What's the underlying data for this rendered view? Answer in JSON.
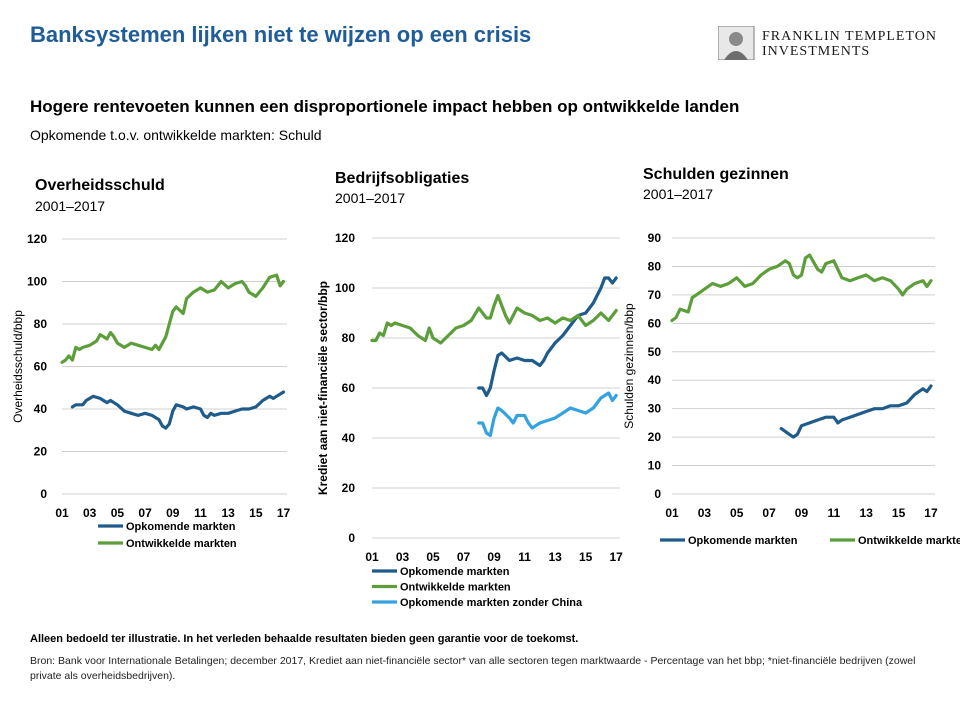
{
  "header": {
    "title": "Banksystemen lijken niet te wijzen op een crisis",
    "logo_line1": "FRANKLIN TEMPLETON",
    "logo_line2": "INVESTMENTS",
    "headline": "Hogere rentevoeten kunnen een disproportionele impact hebben op ontwikkelde landen",
    "subheadline": "Opkomende t.o.v. ontwikkelde markten: Schuld"
  },
  "colors": {
    "title": "#1f5c9a",
    "emerging": "#1f5c8c",
    "developed": "#5b9e3a",
    "emerging_ex_china": "#35a2e0",
    "grid": "#d0d0d0"
  },
  "chart_data": [
    {
      "type": "line",
      "title": "Overheidsschuld",
      "subtitle": "2001–2017",
      "ylabel": "Overheidsschuld/bbp",
      "xlabel": "",
      "ylim": [
        0,
        120
      ],
      "yticks": [
        0,
        20,
        40,
        60,
        80,
        100,
        120
      ],
      "xticks": [
        "01",
        "03",
        "05",
        "07",
        "09",
        "11",
        "13",
        "15",
        "17"
      ],
      "grid": true,
      "legend": "bottom",
      "series": [
        {
          "name": "Opkomende markten",
          "color": "#1f5c8c",
          "points": [
            [
              2001.75,
              41
            ],
            [
              2002,
              42
            ],
            [
              2002.5,
              42
            ],
            [
              2002.75,
              44
            ],
            [
              2003.25,
              46
            ],
            [
              2003.75,
              45
            ],
            [
              2004.25,
              43
            ],
            [
              2004.5,
              44
            ],
            [
              2005,
              42
            ],
            [
              2005.5,
              39
            ],
            [
              2006,
              38
            ],
            [
              2006.5,
              37
            ],
            [
              2007,
              38
            ],
            [
              2007.5,
              37
            ],
            [
              2008,
              35
            ],
            [
              2008.25,
              32
            ],
            [
              2008.5,
              31
            ],
            [
              2008.75,
              33
            ],
            [
              2009,
              39
            ],
            [
              2009.25,
              42
            ],
            [
              2009.75,
              41
            ],
            [
              2010,
              40
            ],
            [
              2010.5,
              41
            ],
            [
              2011,
              40
            ],
            [
              2011.25,
              37
            ],
            [
              2011.5,
              36
            ],
            [
              2011.75,
              38
            ],
            [
              2012,
              37
            ],
            [
              2012.5,
              38
            ],
            [
              2013,
              38
            ],
            [
              2013.5,
              39
            ],
            [
              2014,
              40
            ],
            [
              2014.5,
              40
            ],
            [
              2015,
              41
            ],
            [
              2015.5,
              44
            ],
            [
              2016,
              46
            ],
            [
              2016.25,
              45
            ],
            [
              2016.5,
              46
            ],
            [
              2017,
              48
            ]
          ]
        },
        {
          "name": "Ontwikkelde markten",
          "color": "#5b9e3a",
          "points": [
            [
              2001,
              62
            ],
            [
              2001.25,
              63
            ],
            [
              2001.5,
              65
            ],
            [
              2001.75,
              63
            ],
            [
              2002,
              69
            ],
            [
              2002.25,
              68
            ],
            [
              2002.5,
              69
            ],
            [
              2003,
              70
            ],
            [
              2003.5,
              72
            ],
            [
              2003.75,
              75
            ],
            [
              2004.25,
              73
            ],
            [
              2004.5,
              76
            ],
            [
              2004.75,
              74
            ],
            [
              2005,
              71
            ],
            [
              2005.5,
              69
            ],
            [
              2006,
              71
            ],
            [
              2006.5,
              70
            ],
            [
              2007,
              69
            ],
            [
              2007.5,
              68
            ],
            [
              2007.75,
              70
            ],
            [
              2008,
              68
            ],
            [
              2008.5,
              74
            ],
            [
              2008.75,
              80
            ],
            [
              2009,
              86
            ],
            [
              2009.25,
              88
            ],
            [
              2009.75,
              85
            ],
            [
              2010,
              92
            ],
            [
              2010.5,
              95
            ],
            [
              2011,
              97
            ],
            [
              2011.5,
              95
            ],
            [
              2012,
              96
            ],
            [
              2012.5,
              100
            ],
            [
              2013,
              97
            ],
            [
              2013.5,
              99
            ],
            [
              2014,
              100
            ],
            [
              2014.25,
              98
            ],
            [
              2014.5,
              95
            ],
            [
              2015,
              93
            ],
            [
              2015.5,
              97
            ],
            [
              2016,
              102
            ],
            [
              2016.5,
              103
            ],
            [
              2016.75,
              98
            ],
            [
              2017,
              100
            ]
          ]
        }
      ]
    },
    {
      "type": "line",
      "title": "Bedrijfsobligaties",
      "subtitle": "2001–2017",
      "ylabel": "Krediet aan niet-financiële sector/bbp",
      "xlabel": "",
      "ylim": [
        0,
        120
      ],
      "yticks": [
        0,
        20,
        40,
        60,
        80,
        100,
        120
      ],
      "xticks": [
        "01",
        "03",
        "05",
        "07",
        "09",
        "11",
        "13",
        "15",
        "17"
      ],
      "grid": true,
      "legend": "bottom",
      "series": [
        {
          "name": "Opkomende markten",
          "color": "#1f5c8c",
          "points": [
            [
              2008,
              60
            ],
            [
              2008.25,
              60
            ],
            [
              2008.5,
              57
            ],
            [
              2008.75,
              60
            ],
            [
              2009,
              67
            ],
            [
              2009.25,
              73
            ],
            [
              2009.5,
              74
            ],
            [
              2010,
              71
            ],
            [
              2010.5,
              72
            ],
            [
              2011,
              71
            ],
            [
              2011.5,
              71
            ],
            [
              2012,
              69
            ],
            [
              2012.25,
              71
            ],
            [
              2012.5,
              74
            ],
            [
              2013,
              78
            ],
            [
              2013.5,
              81
            ],
            [
              2014,
              85
            ],
            [
              2014.5,
              89
            ],
            [
              2015,
              90
            ],
            [
              2015.5,
              94
            ],
            [
              2016,
              100
            ],
            [
              2016.25,
              104
            ],
            [
              2016.5,
              104
            ],
            [
              2016.75,
              102
            ],
            [
              2017,
              104
            ]
          ]
        },
        {
          "name": "Ontwikkelde markten",
          "color": "#5b9e3a",
          "points": [
            [
              2001,
              79
            ],
            [
              2001.25,
              79
            ],
            [
              2001.5,
              82
            ],
            [
              2001.75,
              81
            ],
            [
              2002,
              86
            ],
            [
              2002.25,
              85
            ],
            [
              2002.5,
              86
            ],
            [
              2003,
              85
            ],
            [
              2003.5,
              84
            ],
            [
              2004,
              81
            ],
            [
              2004.5,
              79
            ],
            [
              2004.75,
              84
            ],
            [
              2005,
              80
            ],
            [
              2005.5,
              78
            ],
            [
              2006,
              81
            ],
            [
              2006.5,
              84
            ],
            [
              2007,
              85
            ],
            [
              2007.5,
              87
            ],
            [
              2008,
              92
            ],
            [
              2008.25,
              90
            ],
            [
              2008.5,
              88
            ],
            [
              2008.75,
              88
            ],
            [
              2009,
              93
            ],
            [
              2009.25,
              97
            ],
            [
              2009.5,
              93
            ],
            [
              2009.75,
              89
            ],
            [
              2010,
              86
            ],
            [
              2010.5,
              92
            ],
            [
              2011,
              90
            ],
            [
              2011.5,
              89
            ],
            [
              2012,
              87
            ],
            [
              2012.5,
              88
            ],
            [
              2013,
              86
            ],
            [
              2013.5,
              88
            ],
            [
              2014,
              87
            ],
            [
              2014.5,
              89
            ],
            [
              2015,
              85
            ],
            [
              2015.5,
              87
            ],
            [
              2016,
              90
            ],
            [
              2016.5,
              87
            ],
            [
              2017,
              91
            ]
          ]
        },
        {
          "name": "Opkomende markten zonder China",
          "color": "#35a2e0",
          "points": [
            [
              2008,
              46
            ],
            [
              2008.25,
              46
            ],
            [
              2008.5,
              42
            ],
            [
              2008.75,
              41
            ],
            [
              2009,
              48
            ],
            [
              2009.25,
              52
            ],
            [
              2009.5,
              51
            ],
            [
              2010,
              48
            ],
            [
              2010.25,
              46
            ],
            [
              2010.5,
              49
            ],
            [
              2011,
              49
            ],
            [
              2011.25,
              46
            ],
            [
              2011.5,
              44
            ],
            [
              2012,
              46
            ],
            [
              2012.5,
              47
            ],
            [
              2013,
              48
            ],
            [
              2013.5,
              50
            ],
            [
              2014,
              52
            ],
            [
              2014.5,
              51
            ],
            [
              2015,
              50
            ],
            [
              2015.5,
              52
            ],
            [
              2016,
              56
            ],
            [
              2016.5,
              58
            ],
            [
              2016.75,
              55
            ],
            [
              2017,
              57
            ]
          ]
        }
      ]
    },
    {
      "type": "line",
      "title": "Schulden gezinnen",
      "subtitle": "2001–2017",
      "ylabel": "Schulden gezinnen/bbp",
      "xlabel": "",
      "ylim": [
        0,
        90
      ],
      "yticks": [
        0,
        10,
        20,
        30,
        40,
        50,
        60,
        70,
        80,
        90
      ],
      "xticks": [
        "01",
        "03",
        "05",
        "07",
        "09",
        "11",
        "13",
        "15",
        "17"
      ],
      "grid": true,
      "legend": "bottom",
      "series": [
        {
          "name": "Opkomende markten",
          "color": "#1f5c8c",
          "points": [
            [
              2007.75,
              23
            ],
            [
              2008,
              22
            ],
            [
              2008.25,
              21
            ],
            [
              2008.5,
              20
            ],
            [
              2008.75,
              21
            ],
            [
              2009,
              24
            ],
            [
              2009.5,
              25
            ],
            [
              2010,
              26
            ],
            [
              2010.5,
              27
            ],
            [
              2011,
              27
            ],
            [
              2011.25,
              25
            ],
            [
              2011.5,
              26
            ],
            [
              2012,
              27
            ],
            [
              2012.5,
              28
            ],
            [
              2013,
              29
            ],
            [
              2013.5,
              30
            ],
            [
              2014,
              30
            ],
            [
              2014.5,
              31
            ],
            [
              2015,
              31
            ],
            [
              2015.5,
              32
            ],
            [
              2016,
              35
            ],
            [
              2016.5,
              37
            ],
            [
              2016.75,
              36
            ],
            [
              2017,
              38
            ]
          ]
        },
        {
          "name": "Ontwikkelde markten",
          "color": "#5b9e3a",
          "points": [
            [
              2001,
              61
            ],
            [
              2001.25,
              62
            ],
            [
              2001.5,
              65
            ],
            [
              2002,
              64
            ],
            [
              2002.25,
              69
            ],
            [
              2002.5,
              70
            ],
            [
              2003,
              72
            ],
            [
              2003.5,
              74
            ],
            [
              2004,
              73
            ],
            [
              2004.5,
              74
            ],
            [
              2005,
              76
            ],
            [
              2005.5,
              73
            ],
            [
              2006,
              74
            ],
            [
              2006.5,
              77
            ],
            [
              2007,
              79
            ],
            [
              2007.5,
              80
            ],
            [
              2008,
              82
            ],
            [
              2008.25,
              81
            ],
            [
              2008.5,
              77
            ],
            [
              2008.75,
              76
            ],
            [
              2009,
              77
            ],
            [
              2009.25,
              83
            ],
            [
              2009.5,
              84
            ],
            [
              2010,
              79
            ],
            [
              2010.25,
              78
            ],
            [
              2010.5,
              81
            ],
            [
              2011,
              82
            ],
            [
              2011.5,
              76
            ],
            [
              2012,
              75
            ],
            [
              2012.5,
              76
            ],
            [
              2013,
              77
            ],
            [
              2013.5,
              75
            ],
            [
              2014,
              76
            ],
            [
              2014.5,
              75
            ],
            [
              2015,
              72
            ],
            [
              2015.25,
              70
            ],
            [
              2015.5,
              72
            ],
            [
              2016,
              74
            ],
            [
              2016.5,
              75
            ],
            [
              2016.75,
              73
            ],
            [
              2017,
              75
            ]
          ]
        }
      ]
    }
  ],
  "footer": {
    "disclaimer": "Alleen bedoeld ter illustratie. In het verleden behaalde resultaten bieden geen garantie voor de toekomst.",
    "source": "Bron: Bank voor Internationale Betalingen; december 2017, Krediet aan niet-financiële sector* van alle sectoren tegen marktwaarde - Percentage van het bbp; *niet-financiële bedrijven (zowel private als overheidsbedrijven)."
  }
}
